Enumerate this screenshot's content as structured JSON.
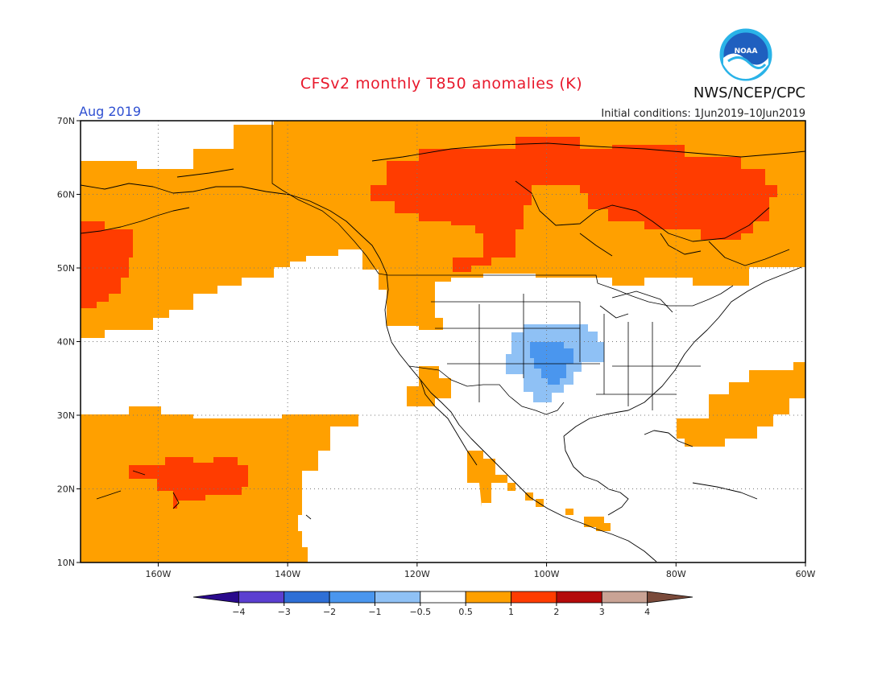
{
  "title": "CFSv2 monthly T850 anomalies (K)",
  "month_label": "Aug 2019",
  "org_label": "NWS/NCEP/CPC",
  "initial_conditions": "Initial conditions: 1Jun2019–10Jun2019",
  "logo": {
    "text": "NOAA",
    "icon": "noaa-logo"
  },
  "map": {
    "lon_range": [
      -172,
      -60
    ],
    "lat_range": [
      10,
      70
    ],
    "lat_ticks": [
      {
        "value": 70,
        "label": "70N"
      },
      {
        "value": 60,
        "label": "60N"
      },
      {
        "value": 50,
        "label": "50N"
      },
      {
        "value": 40,
        "label": "40N"
      },
      {
        "value": 30,
        "label": "30N"
      },
      {
        "value": 20,
        "label": "20N"
      },
      {
        "value": 10,
        "label": "10N"
      }
    ],
    "lon_ticks": [
      {
        "value": -160,
        "label": "160W"
      },
      {
        "value": -140,
        "label": "140W"
      },
      {
        "value": -120,
        "label": "120W"
      },
      {
        "value": -100,
        "label": "100W"
      },
      {
        "value": -80,
        "label": "80W"
      },
      {
        "value": -60,
        "label": "60W"
      }
    ],
    "grid": "dotted"
  },
  "colorbar": {
    "labels": [
      "−4",
      "−3",
      "−2",
      "−1",
      "−0.5",
      "0.5",
      "1",
      "2",
      "3",
      "4"
    ],
    "colors": [
      "#2a0a8c",
      "#5b3fd0",
      "#2e6fd6",
      "#4a96ee",
      "#8fc1f5",
      "#ffffff",
      "#ffa000",
      "#ff3c00",
      "#b40a0a",
      "#c9a395",
      "#7a4a3a"
    ]
  },
  "anomaly_regions": [
    {
      "level": "1",
      "color": "#ffa000",
      "area": "Alaska, Canada and Gulf of Alaska"
    },
    {
      "level": "2",
      "color": "#ff3c00",
      "area": "Central and eastern Canada"
    },
    {
      "level": "2",
      "color": "#ff3c00",
      "area": "Far west North Pacific near 50N"
    },
    {
      "level": "1",
      "color": "#ffa000",
      "area": "Subtropical central Pacific"
    },
    {
      "level": "2",
      "color": "#ff3c00",
      "area": "Near Hawaii"
    },
    {
      "level": "1",
      "color": "#ffa000",
      "area": "Western Atlantic off the US East Coast"
    },
    {
      "level": "1",
      "color": "#ffa000",
      "area": "US Southwest and Baja / Gulf of California"
    },
    {
      "level": "-1",
      "color": "#8fc1f5",
      "area": "Central Plains"
    },
    {
      "level": "-2",
      "color": "#4a96ee",
      "area": "Kansas / Oklahoma"
    }
  ]
}
